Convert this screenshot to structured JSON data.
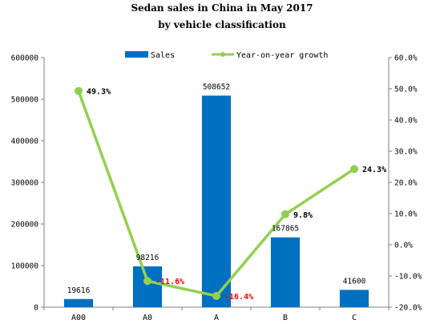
{
  "chart_data": {
    "type": "bar",
    "title": "Sedan sales in China in May 2017",
    "subtitle": "by vehicle classification",
    "categories": [
      "A00",
      "A0",
      "A",
      "B",
      "C"
    ],
    "series": [
      {
        "name": "Sales",
        "type": "bar",
        "axis": "left",
        "color": "#0070C0",
        "values": [
          19616,
          98216,
          508652,
          167865,
          41600
        ],
        "labels": [
          "19616",
          "98216",
          "508652",
          "167865",
          "41600"
        ]
      },
      {
        "name": "Year-on-year growth",
        "type": "line",
        "axis": "right",
        "color": "#92D050",
        "values": [
          49.3,
          -11.6,
          -16.4,
          9.8,
          24.3
        ],
        "labels": [
          "49.3%",
          "-11.6%",
          "-16.4%",
          "9.8%",
          "24.3%"
        ],
        "label_colors": [
          "#000000",
          "#FF0000",
          "#FF0000",
          "#000000",
          "#000000"
        ]
      }
    ],
    "y_left": {
      "ylim": [
        0,
        600000
      ],
      "ticks": [
        "0",
        "100000",
        "200000",
        "300000",
        "400000",
        "500000",
        "600000"
      ]
    },
    "y_right": {
      "ylim": [
        -20,
        60
      ],
      "ticks": [
        "-20.0%",
        "-10.0%",
        "0.0%",
        "10.0%",
        "20.0%",
        "30.0%",
        "40.0%",
        "50.0%",
        "60.0%"
      ]
    },
    "legend": "top-center",
    "grid": false
  }
}
